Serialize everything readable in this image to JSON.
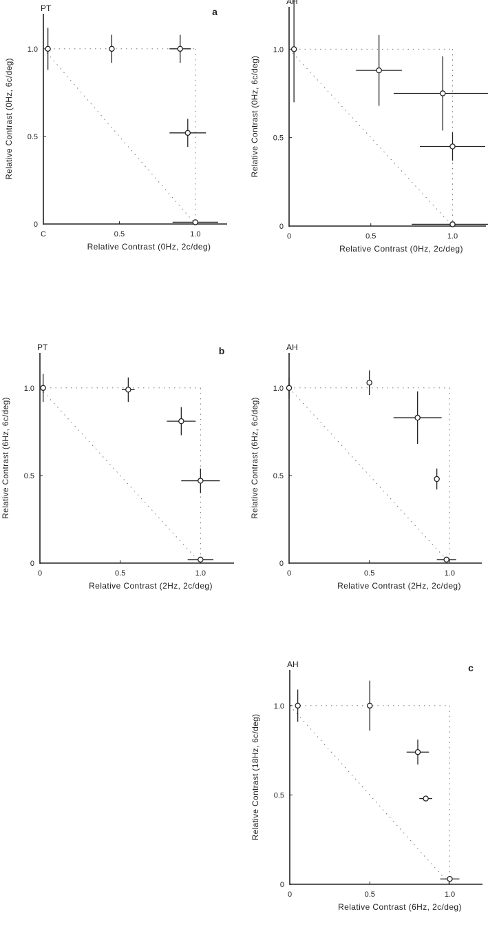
{
  "chart_data": [
    {
      "type": "scatter",
      "panel_label": "a",
      "subject": "PT",
      "xlabel": "Relative Contrast (0Hz, 2c/deg)",
      "ylabel": "Relative Contrast (0Hz, 6c/deg)",
      "x_tick_labels": [
        "C",
        "0.5",
        "1.0"
      ],
      "y_tick_labels": [
        "0",
        "0.5",
        "1.0"
      ],
      "xlim": [
        0,
        1.2
      ],
      "ylim": [
        0,
        1.2
      ],
      "points": [
        {
          "x": 0.03,
          "y": 1.0,
          "xerr": 0.0,
          "yerr": 0.12
        },
        {
          "x": 0.45,
          "y": 1.0,
          "xerr": 0.0,
          "yerr": 0.08
        },
        {
          "x": 0.9,
          "y": 1.0,
          "xerr": 0.07,
          "yerr": 0.08
        },
        {
          "x": 0.95,
          "y": 0.52,
          "xerr": 0.12,
          "yerr": 0.08
        },
        {
          "x": 1.0,
          "y": 0.01,
          "xerr": 0.15,
          "yerr": 0.0
        }
      ]
    },
    {
      "type": "scatter",
      "subject": "AH",
      "xlabel": "Relative Contrast (0Hz, 2c/deg)",
      "ylabel": "Relative Contrast (0Hz, 6c/deg)",
      "x_tick_labels": [
        "0",
        "0.5",
        "1.0"
      ],
      "y_tick_labels": [
        "0",
        "0.5",
        "1.0"
      ],
      "xlim": [
        0,
        1.2
      ],
      "ylim": [
        0,
        1.2
      ],
      "points": [
        {
          "x": 0.03,
          "y": 1.0,
          "xerr": 0.0,
          "yerr": 0.3
        },
        {
          "x": 0.55,
          "y": 0.88,
          "xerr": 0.14,
          "yerr": 0.2
        },
        {
          "x": 0.94,
          "y": 0.75,
          "xerr": 0.3,
          "yerr": 0.21
        },
        {
          "x": 1.0,
          "y": 0.45,
          "xerr": 0.2,
          "yerr": 0.08
        },
        {
          "x": 1.0,
          "y": 0.01,
          "xerr": 0.25,
          "yerr": 0.0
        }
      ]
    },
    {
      "type": "scatter",
      "panel_label": "b",
      "subject": "PT",
      "xlabel": "Relative Contrast (2Hz, 2c/deg)",
      "ylabel": "Relative Contrast (6Hz, 6c/deg)",
      "x_tick_labels": [
        "0",
        "0.5",
        "1.0"
      ],
      "y_tick_labels": [
        "0",
        "0.5",
        "1.0"
      ],
      "xlim": [
        0,
        1.2
      ],
      "ylim": [
        0,
        1.2
      ],
      "points": [
        {
          "x": 0.02,
          "y": 1.0,
          "xerr": 0.0,
          "yerr": 0.08
        },
        {
          "x": 0.55,
          "y": 0.99,
          "xerr": 0.04,
          "yerr": 0.07
        },
        {
          "x": 0.88,
          "y": 0.81,
          "xerr": 0.09,
          "yerr": 0.08
        },
        {
          "x": 1.0,
          "y": 0.47,
          "xerr": 0.12,
          "yerr": 0.07
        },
        {
          "x": 1.0,
          "y": 0.02,
          "xerr": 0.08,
          "yerr": 0.0
        }
      ]
    },
    {
      "type": "scatter",
      "subject": "AH",
      "xlabel": "Relative Contrast (2Hz, 2c/deg)",
      "ylabel": "Relative Contrast (6Hz, 6c/deg)",
      "x_tick_labels": [
        "0",
        "0.5",
        "1.0"
      ],
      "y_tick_labels": [
        "0",
        "0.5",
        "1.0"
      ],
      "xlim": [
        0,
        1.2
      ],
      "ylim": [
        0,
        1.2
      ],
      "points": [
        {
          "x": 0.0,
          "y": 1.0,
          "xerr": 0.0,
          "yerr": 0.06
        },
        {
          "x": 0.5,
          "y": 1.03,
          "xerr": 0.0,
          "yerr": 0.07
        },
        {
          "x": 0.8,
          "y": 0.83,
          "xerr": 0.15,
          "yerr": 0.15
        },
        {
          "x": 0.92,
          "y": 0.48,
          "xerr": 0.0,
          "yerr": 0.06
        },
        {
          "x": 0.98,
          "y": 0.02,
          "xerr": 0.06,
          "yerr": 0.0
        }
      ]
    },
    {
      "type": "scatter",
      "panel_label": "c",
      "subject": "AH",
      "xlabel": "Relative Contrast (6Hz, 2c/deg)",
      "ylabel": "Relative Contrast (18Hz, 6c/deg)",
      "x_tick_labels": [
        "0",
        "0.5",
        "1.0"
      ],
      "y_tick_labels": [
        "0",
        "0.5",
        "1.0"
      ],
      "xlim": [
        0,
        1.2
      ],
      "ylim": [
        0,
        1.2
      ],
      "points": [
        {
          "x": 0.05,
          "y": 1.0,
          "xerr": 0.0,
          "yerr": 0.09
        },
        {
          "x": 0.5,
          "y": 1.0,
          "xerr": 0.0,
          "yerr": 0.14
        },
        {
          "x": 0.8,
          "y": 0.74,
          "xerr": 0.07,
          "yerr": 0.07
        },
        {
          "x": 0.85,
          "y": 0.48,
          "xerr": 0.04,
          "yerr": 0.0
        },
        {
          "x": 1.0,
          "y": 0.03,
          "xerr": 0.06,
          "yerr": 0.0
        }
      ]
    }
  ]
}
